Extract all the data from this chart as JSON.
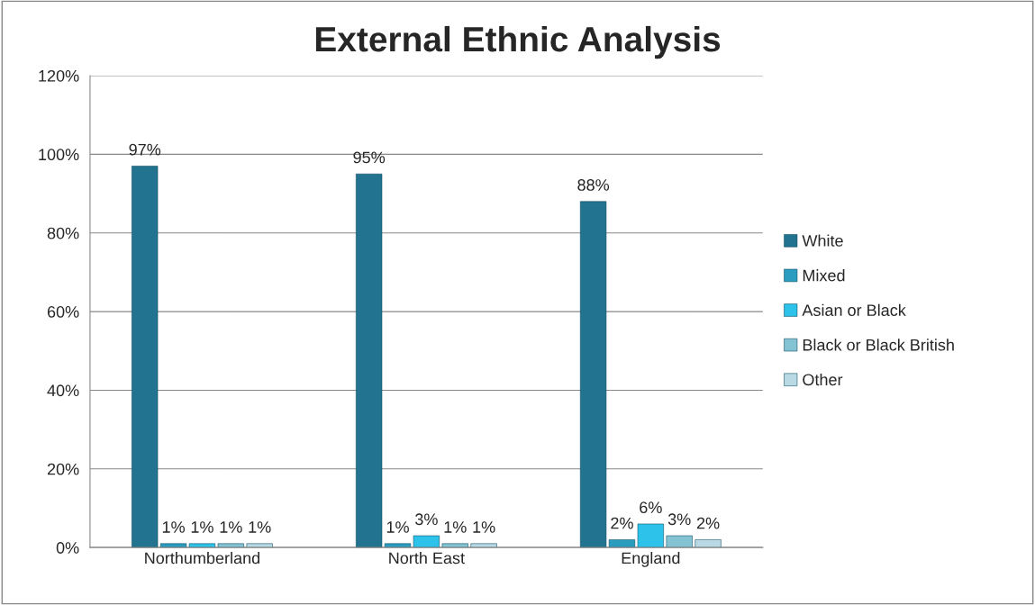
{
  "chart_data": {
    "type": "bar",
    "title": "External Ethnic Analysis",
    "categories": [
      "Northumberland",
      "North East",
      "England"
    ],
    "series": [
      {
        "name": "White",
        "color": "#21738f",
        "values": [
          97,
          95,
          88
        ],
        "value_labels": [
          "97%",
          "95%",
          "88%"
        ]
      },
      {
        "name": "Mixed",
        "color": "#2a9cbf",
        "values": [
          1,
          1,
          2
        ],
        "value_labels": [
          "1%",
          "1%",
          "2%"
        ]
      },
      {
        "name": "Asian or Black",
        "color": "#2cc2ea",
        "values": [
          1,
          3,
          6
        ],
        "value_labels": [
          "1%",
          "3%",
          "6%"
        ]
      },
      {
        "name": "Black or Black British",
        "color": "#84c3d4",
        "values": [
          1,
          1,
          3
        ],
        "value_labels": [
          "1%",
          "1%",
          "3%"
        ]
      },
      {
        "name": "Other",
        "color": "#b9d9e4",
        "values": [
          1,
          1,
          2
        ],
        "value_labels": [
          "1%",
          "1%",
          "2%"
        ]
      }
    ],
    "ylim": [
      0,
      120
    ],
    "yticks": [
      {
        "value": 0,
        "label": "0%"
      },
      {
        "value": 20,
        "label": "20%"
      },
      {
        "value": 40,
        "label": "40%"
      },
      {
        "value": 60,
        "label": "60%"
      },
      {
        "value": 80,
        "label": "80%"
      },
      {
        "value": 100,
        "label": "100%"
      },
      {
        "value": 120,
        "label": "120%"
      }
    ],
    "grid": "y",
    "legend": "right"
  }
}
